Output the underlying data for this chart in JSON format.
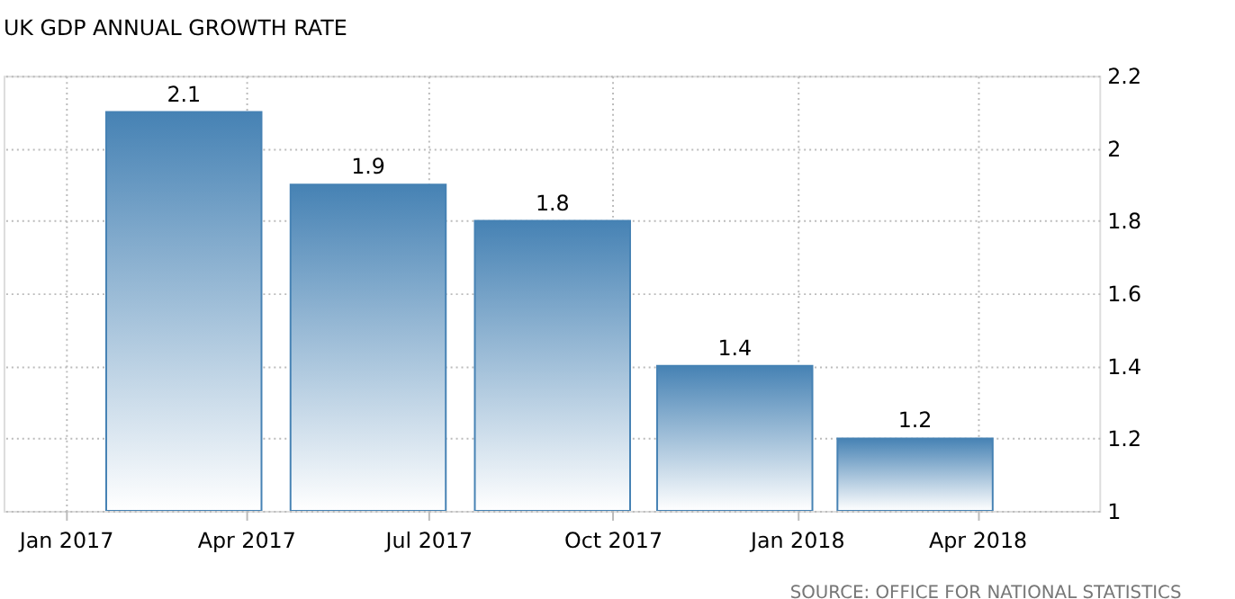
{
  "chart_data": {
    "type": "bar",
    "title": "UK GDP ANNUAL GROWTH RATE",
    "x": [
      "2017-03-01",
      "2017-06-01",
      "2017-09-01",
      "2017-12-01",
      "2018-03-01"
    ],
    "values": [
      2.1,
      1.9,
      1.8,
      1.4,
      1.2
    ],
    "color": "#4682b4",
    "xlim": [
      "2016-12-01",
      "2018-06-01"
    ],
    "xticks": [
      {
        "value": "2017-01-01",
        "label": "Jan 2017"
      },
      {
        "value": "2017-04-01",
        "label": "Apr 2017"
      },
      {
        "value": "2017-07-01",
        "label": "Jul 2017"
      },
      {
        "value": "2017-10-01",
        "label": "Oct 2017"
      },
      {
        "value": "2018-01-01",
        "label": "Jan 2018"
      },
      {
        "value": "2018-04-01",
        "label": "Apr 2018"
      }
    ],
    "ylim": [
      1,
      2.2
    ],
    "yticks": [
      1,
      1.2,
      1.4,
      1.6,
      1.8,
      2,
      2.2
    ],
    "grid": true,
    "data_labels": true,
    "annotations": [
      "SOURCE: OFFICE FOR NATIONAL STATISTICS"
    ]
  }
}
